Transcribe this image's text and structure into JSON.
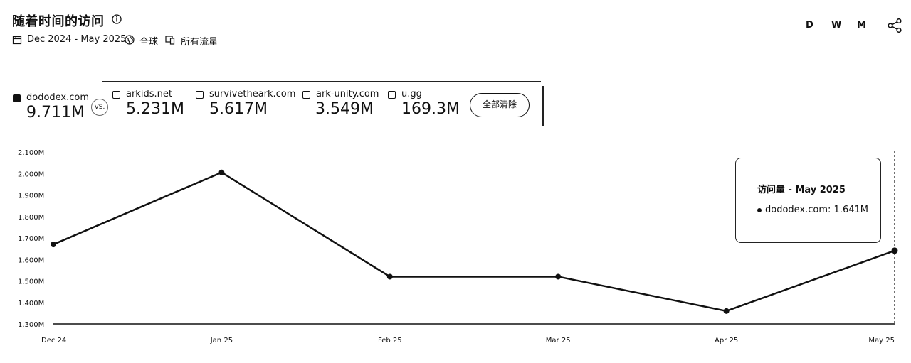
{
  "header": {
    "title": "随着时间的访问",
    "date_range": "Dec 2024 - May 2025",
    "region": "全球",
    "traffic_type": "所有流量",
    "periods": [
      "D",
      "W",
      "M"
    ]
  },
  "compare": {
    "vs_label": "VS.",
    "clear_label": "全部清除",
    "main": {
      "name": "dododex.com",
      "value": "9.711M",
      "checked": true
    },
    "competitors": [
      {
        "name": "arkids.net",
        "value": "5.231M",
        "checked": false
      },
      {
        "name": "survivetheark.com",
        "value": "5.617M",
        "checked": false
      },
      {
        "name": "ark-unity.com",
        "value": "3.549M",
        "checked": false
      },
      {
        "name": "u.gg",
        "value": "169.3M",
        "checked": false
      }
    ]
  },
  "tooltip": {
    "title": "访问量 - May 2025",
    "item": "dododex.com: 1.641M"
  },
  "icons": {
    "info": "info-icon",
    "calendar": "calendar-icon",
    "globe": "globe-icon",
    "traffic": "devices-icon",
    "share": "share-icon"
  },
  "chart_data": {
    "type": "line",
    "categories": [
      "Dec 24",
      "Jan 25",
      "Feb 25",
      "Mar 25",
      "Apr 25",
      "May 25"
    ],
    "series": [
      {
        "name": "dododex.com",
        "values": [
          1.67,
          2.005,
          1.52,
          1.52,
          1.36,
          1.641
        ]
      }
    ],
    "yticks": [
      "1.300M",
      "1.400M",
      "1.500M",
      "1.600M",
      "1.700M",
      "1.800M",
      "1.900M",
      "2.000M",
      "2.100M"
    ],
    "ylim": [
      1.3,
      2.1
    ],
    "unit": "M",
    "highlight_index": 5,
    "color": "#111111"
  }
}
